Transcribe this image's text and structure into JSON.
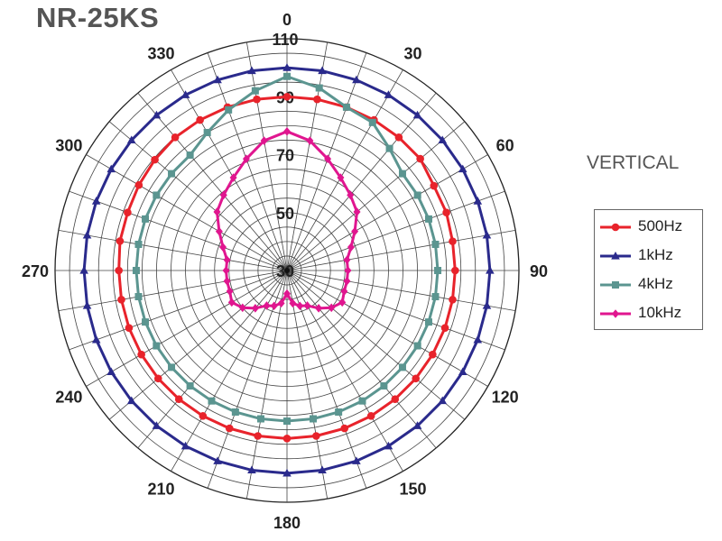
{
  "title": "NR-25KS",
  "subtitle": "VERTICAL",
  "chart_data": {
    "type": "polar-line",
    "title": "NR-25KS",
    "subtitle": "VERTICAL",
    "r_range": [
      30,
      110
    ],
    "r_ticks": [
      30,
      50,
      70,
      90,
      110
    ],
    "angle_step_deg": 10,
    "angle_labels": [
      0,
      30,
      60,
      90,
      120,
      150,
      180,
      210,
      240,
      270,
      300,
      330
    ],
    "angles_deg": [
      0,
      10,
      20,
      30,
      40,
      50,
      60,
      70,
      80,
      90,
      100,
      110,
      120,
      130,
      140,
      150,
      160,
      170,
      180,
      190,
      200,
      210,
      220,
      230,
      240,
      250,
      260,
      270,
      280,
      290,
      300,
      310,
      320,
      330,
      340,
      350
    ],
    "grid": true,
    "legend_position": "right",
    "series": [
      {
        "name": "500Hz",
        "color": "#e8232b",
        "marker": "circle",
        "values": [
          90,
          90,
          90,
          90,
          90,
          90,
          88.5,
          88.5,
          88,
          88,
          88,
          88,
          88,
          88,
          88,
          88,
          88,
          88,
          88,
          88,
          88,
          88,
          88,
          88,
          88,
          88,
          88,
          88,
          88.5,
          88.5,
          89,
          89.5,
          90,
          90,
          90,
          90
        ]
      },
      {
        "name": "1kHz",
        "color": "#2a2a8c",
        "marker": "triangle",
        "values": [
          100,
          100,
          100,
          100,
          100,
          100,
          100,
          100,
          100,
          100,
          100,
          100,
          100,
          100,
          100,
          100,
          100,
          100,
          100,
          100,
          100,
          100,
          100,
          100,
          100,
          100,
          100,
          100,
          100,
          100,
          100,
          100,
          100,
          100,
          100,
          100
        ]
      },
      {
        "name": "4kHz",
        "color": "#5b9590",
        "marker": "square",
        "values": [
          97,
          94,
          90,
          89,
          85,
          82,
          82,
          82,
          82,
          82,
          82,
          82,
          82,
          82,
          82,
          82,
          82,
          82,
          82,
          82,
          82,
          82,
          82,
          82,
          82,
          82,
          82,
          82,
          82,
          82,
          82,
          82,
          82,
          85,
          89,
          93
        ]
      },
      {
        "name": "10kHz",
        "color": "#e0168f",
        "marker": "diamond",
        "values": [
          78,
          75.5,
          71,
          67,
          64,
          61.5,
          57,
          53.5,
          51,
          51,
          51,
          51,
          52,
          50,
          47,
          44,
          43,
          41.5,
          38,
          41.5,
          43,
          44,
          47,
          50,
          52,
          51,
          51,
          51,
          51,
          53.5,
          57,
          61.5,
          64,
          67,
          71,
          75.5
        ]
      }
    ]
  },
  "legend": {
    "items": [
      {
        "label": "500Hz",
        "color": "#e8232b",
        "marker": "circle"
      },
      {
        "label": "1kHz",
        "color": "#2a2a8c",
        "marker": "triangle"
      },
      {
        "label": "4kHz",
        "color": "#5b9590",
        "marker": "square"
      },
      {
        "label": "10kHz",
        "color": "#e0168f",
        "marker": "diamond"
      }
    ]
  }
}
